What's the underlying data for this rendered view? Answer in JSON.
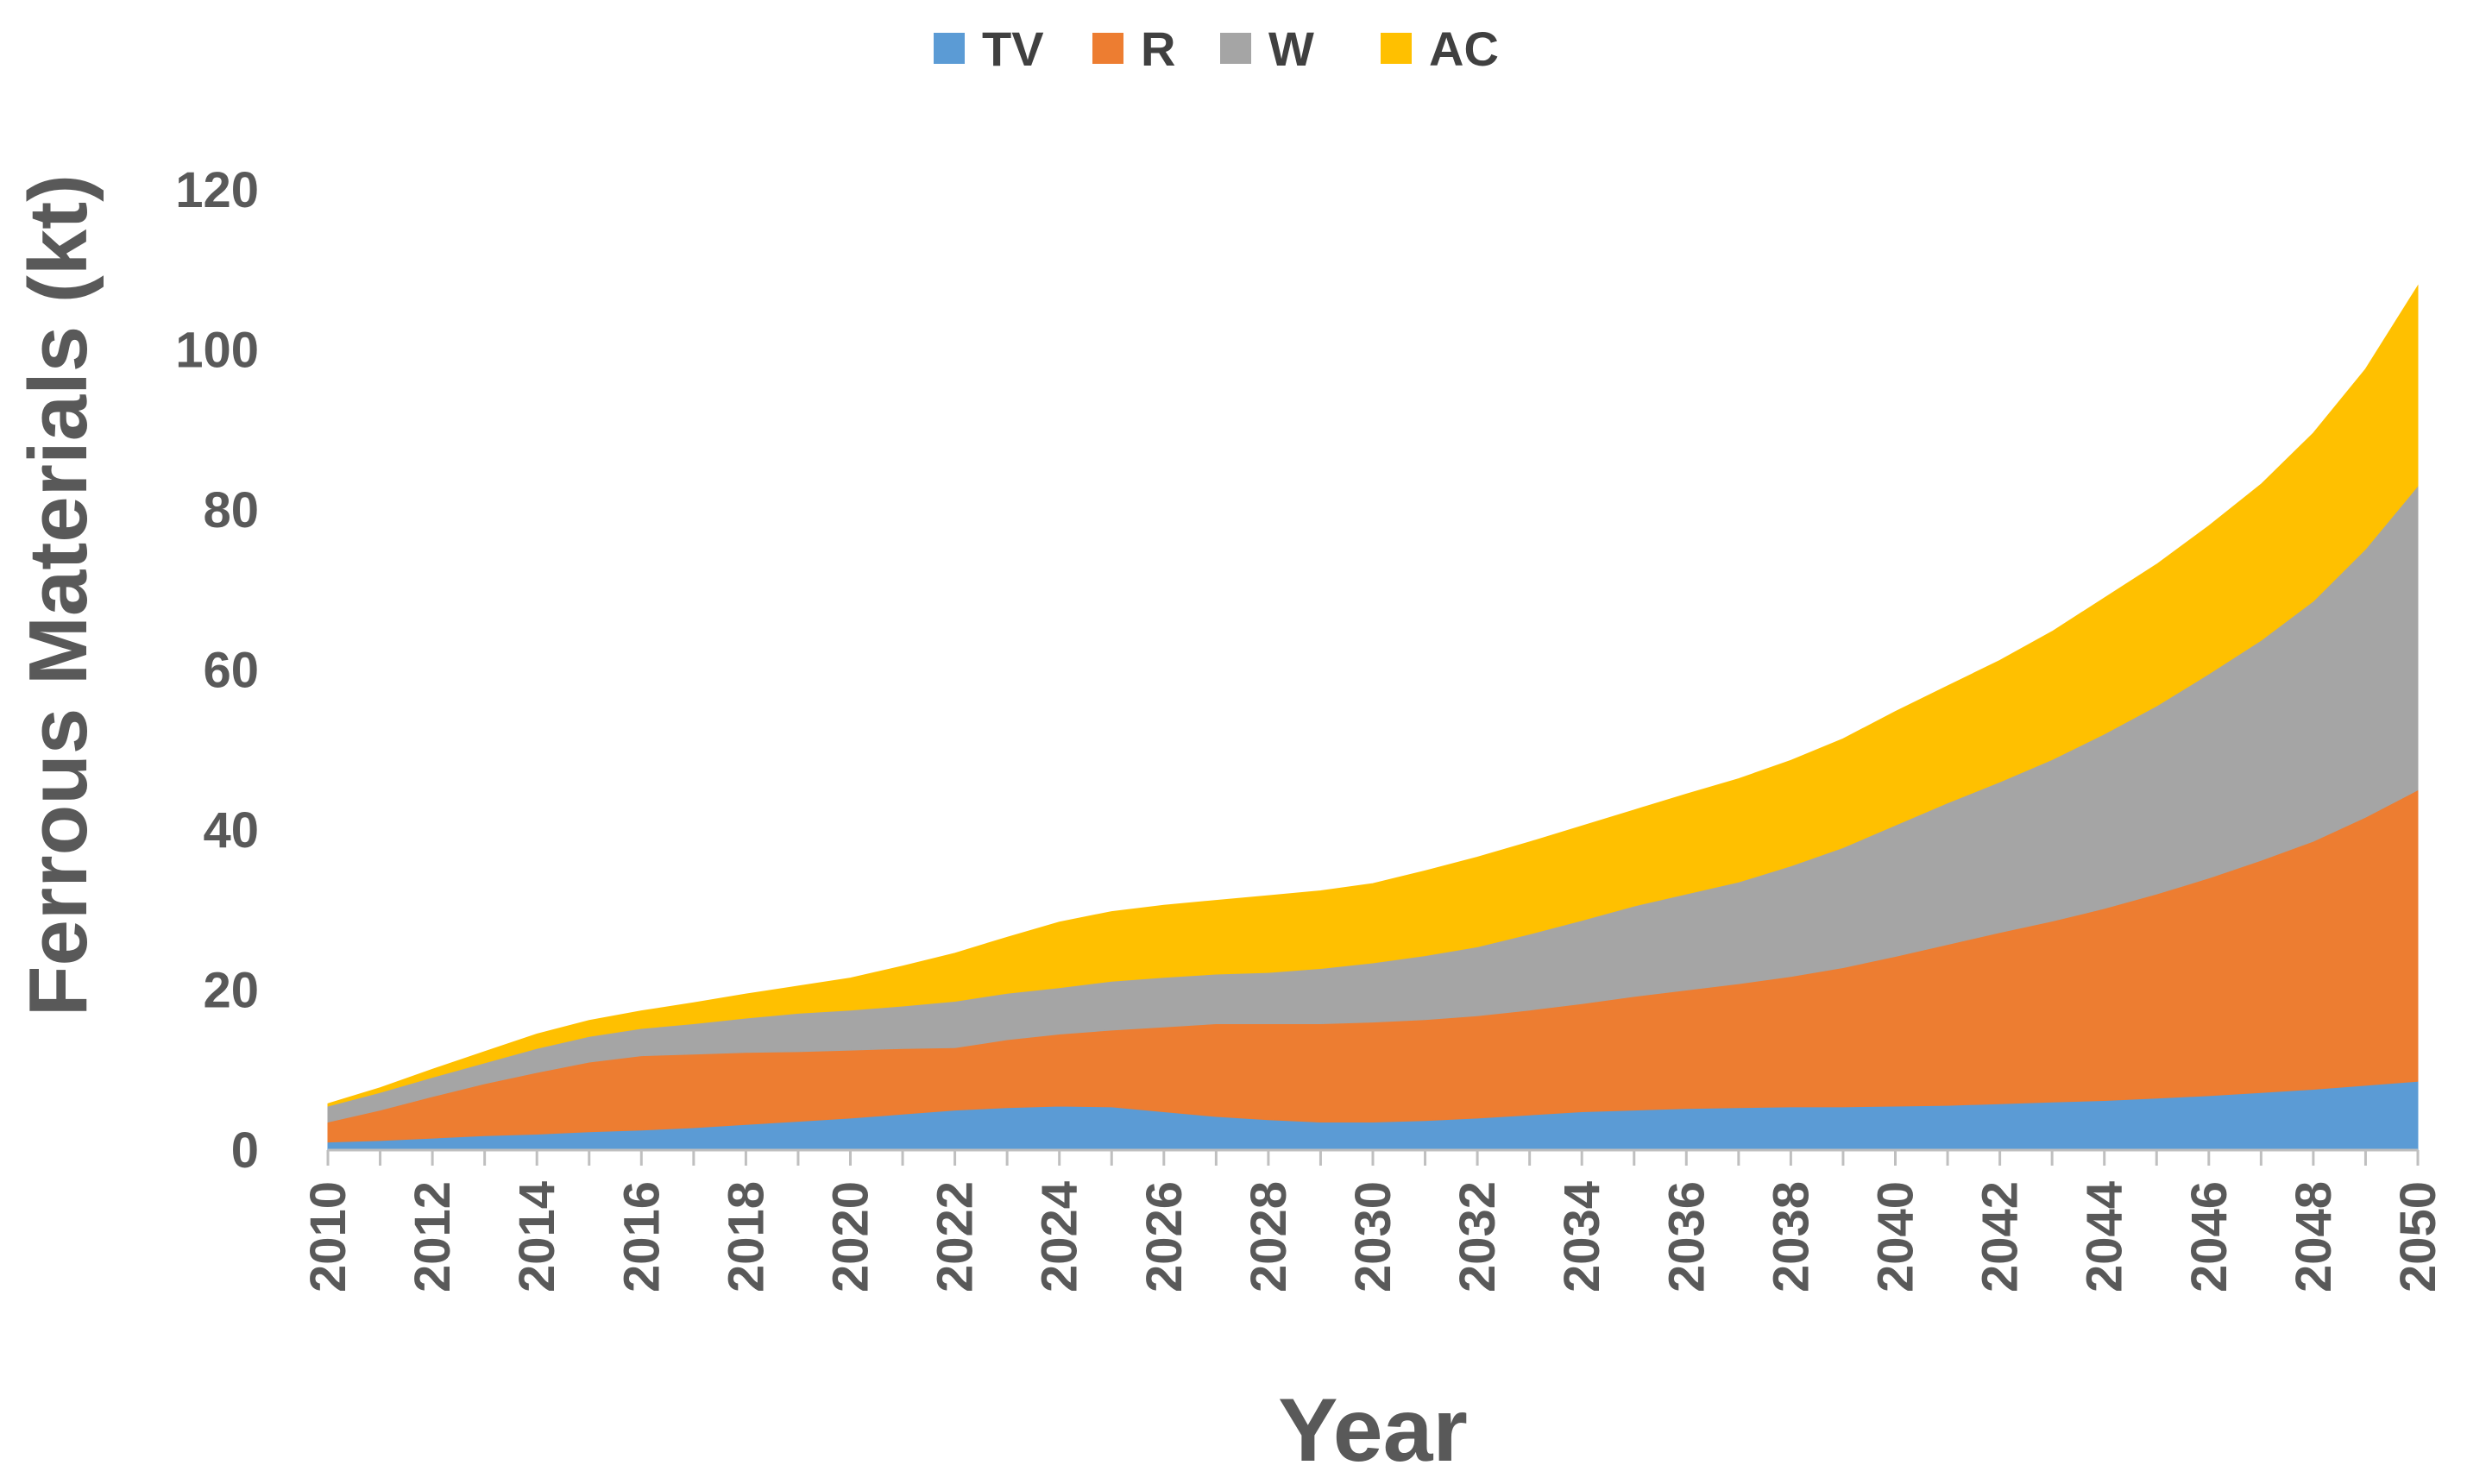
{
  "chart_data": {
    "type": "area",
    "stacked": true,
    "xlabel": "Year",
    "ylabel": "Ferrous Materials (kt)",
    "ylim": [
      0,
      120
    ],
    "yticks": [
      "0",
      "20",
      "40",
      "60",
      "80",
      "100",
      "120"
    ],
    "grid": false,
    "legend_position": "top",
    "x": [
      2010,
      2011,
      2012,
      2013,
      2014,
      2015,
      2016,
      2017,
      2018,
      2019,
      2020,
      2021,
      2022,
      2023,
      2024,
      2025,
      2026,
      2027,
      2028,
      2029,
      2030,
      2031,
      2032,
      2033,
      2034,
      2035,
      2036,
      2037,
      2038,
      2039,
      2040,
      2041,
      2042,
      2043,
      2044,
      2045,
      2046,
      2047,
      2048,
      2049,
      2050
    ],
    "xtick_labels": [
      "2010",
      "2012",
      "2014",
      "2016",
      "2018",
      "2020",
      "2022",
      "2024",
      "2026",
      "2028",
      "2030",
      "2032",
      "2034",
      "2036",
      "2038",
      "2040",
      "2042",
      "2044",
      "2046",
      "2048",
      "2050"
    ],
    "series": [
      {
        "name": "TV",
        "color": "#5b9bd5",
        "values": [
          1.0,
          1.2,
          1.5,
          1.8,
          2.0,
          2.3,
          2.5,
          2.8,
          3.2,
          3.6,
          4.0,
          4.5,
          5.0,
          5.3,
          5.5,
          5.4,
          4.8,
          4.2,
          3.8,
          3.5,
          3.5,
          3.7,
          4.0,
          4.4,
          4.8,
          5.0,
          5.2,
          5.3,
          5.4,
          5.4,
          5.5,
          5.6,
          5.8,
          6.0,
          6.2,
          6.5,
          6.8,
          7.2,
          7.6,
          8.1,
          8.6
        ]
      },
      {
        "name": "R",
        "color": "#ed7d31",
        "values": [
          2.5,
          3.8,
          5.2,
          6.5,
          7.7,
          8.7,
          9.3,
          9.2,
          9.0,
          8.7,
          8.5,
          8.2,
          7.8,
          8.5,
          9.0,
          9.6,
          10.6,
          11.6,
          12.0,
          12.3,
          12.5,
          12.6,
          12.8,
          13.1,
          13.5,
          14.2,
          14.8,
          15.5,
          16.3,
          17.4,
          18.7,
          20.1,
          21.4,
          22.6,
          24.0,
          25.5,
          27.2,
          29.0,
          31.0,
          33.5,
          36.4
        ]
      },
      {
        "name": "W",
        "color": "#a5a5a5",
        "values": [
          2.0,
          2.2,
          2.4,
          2.6,
          3.0,
          3.2,
          3.4,
          3.8,
          4.3,
          4.8,
          5.0,
          5.3,
          5.8,
          5.8,
          5.8,
          6.1,
          6.2,
          6.2,
          6.4,
          6.9,
          7.4,
          8.0,
          8.6,
          9.5,
          10.4,
          11.3,
          12.0,
          12.7,
          13.8,
          15.0,
          16.4,
          17.7,
          18.8,
          20.2,
          21.8,
          23.5,
          25.5,
          27.5,
          30.0,
          33.5,
          38.0
        ]
      },
      {
        "name": "AC",
        "color": "#ffc000",
        "values": [
          0.3,
          0.6,
          1.0,
          1.4,
          1.8,
          2.0,
          2.2,
          2.6,
          3.0,
          3.4,
          4.0,
          5.0,
          6.0,
          7.0,
          8.2,
          8.7,
          9.0,
          9.2,
          9.6,
          9.7,
          9.9,
          10.6,
          11.2,
          11.5,
          11.8,
          12.0,
          12.5,
          12.9,
          13.2,
          13.6,
          14.2,
          14.6,
          15.2,
          16.0,
          17.0,
          17.7,
          18.5,
          19.5,
          21.0,
          22.5,
          25.0
        ]
      }
    ]
  }
}
